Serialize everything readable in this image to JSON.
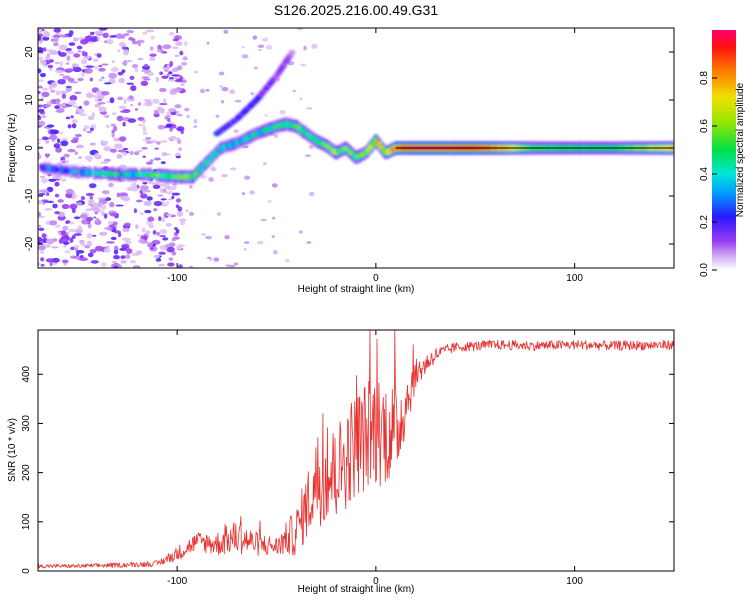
{
  "title": "S126.2025.216.00.49.G31",
  "chart_data": [
    {
      "type": "heatmap",
      "xlabel": "Height of straight line (km)",
      "ylabel": "Frequency (Hz)",
      "xlim": [
        -170,
        150
      ],
      "ylim": [
        -25,
        25
      ],
      "xticks": [
        -100,
        0,
        100
      ],
      "yticks": [
        -20,
        -10,
        0,
        10,
        20
      ],
      "colorbar": {
        "label": "Normalized spectral amplitude",
        "range": [
          0,
          1
        ],
        "ticks": [
          "0.0",
          "0.2",
          "0.4",
          "0.6",
          "0.8"
        ]
      },
      "ridge": {
        "x": [
          -170,
          -150,
          -130,
          -115,
          -100,
          -92,
          -85,
          -78,
          -70,
          -60,
          -50,
          -45,
          -40,
          -35,
          -30,
          -25,
          -20,
          -15,
          -10,
          -5,
          0,
          5,
          10,
          20,
          40,
          60,
          80,
          100,
          120,
          150
        ],
        "freq": [
          -4,
          -5,
          -5.5,
          -5.5,
          -6,
          -6,
          -3,
          0,
          1,
          3,
          4.5,
          5,
          4.5,
          3,
          1.5,
          0.5,
          -1,
          0,
          -2,
          -1,
          1.5,
          -1,
          0,
          0,
          0,
          0,
          0,
          0,
          0,
          0
        ],
        "amp": [
          0.25,
          0.3,
          0.45,
          0.5,
          0.55,
          0.5,
          0.4,
          0.35,
          0.35,
          0.4,
          0.45,
          0.5,
          0.5,
          0.45,
          0.45,
          0.5,
          0.6,
          0.5,
          0.5,
          0.6,
          0.7,
          0.65,
          0.85,
          1.0,
          1.0,
          0.85,
          0.55,
          0.5,
          0.5,
          0.75
        ]
      },
      "upper_branch": {
        "x": [
          -80,
          -70,
          -65,
          -60,
          -50,
          -42
        ],
        "freq": [
          3,
          6,
          8,
          10,
          15,
          20
        ],
        "amp": [
          0.25,
          0.2,
          0.25,
          0.2,
          0.15,
          0.1
        ]
      },
      "noise_region_x": [
        -170,
        -105
      ]
    },
    {
      "type": "line",
      "xlabel": "Height of straight line (km)",
      "ylabel": "SNR (10 * v/v)",
      "xlim": [
        -170,
        150
      ],
      "ylim": [
        0,
        490
      ],
      "xticks": [
        -100,
        0,
        100
      ],
      "yticks": [
        0,
        100,
        200,
        300,
        400
      ],
      "series": [
        {
          "color": "#e8302e",
          "x": [
            -170,
            -150,
            -130,
            -110,
            -100,
            -90,
            -80,
            -70,
            -60,
            -50,
            -40,
            -30,
            -20,
            -10,
            0,
            10,
            20,
            30,
            40,
            60,
            80,
            100,
            120,
            150
          ],
          "y": [
            10,
            10,
            12,
            15,
            35,
            60,
            55,
            70,
            55,
            50,
            80,
            180,
            200,
            260,
            290,
            280,
            400,
            440,
            455,
            460,
            458,
            460,
            458,
            460
          ],
          "jitter": [
            4,
            4,
            5,
            6,
            15,
            20,
            25,
            35,
            25,
            20,
            50,
            90,
            100,
            110,
            120,
            100,
            30,
            15,
            10,
            10,
            10,
            10,
            10,
            10
          ]
        }
      ]
    }
  ]
}
